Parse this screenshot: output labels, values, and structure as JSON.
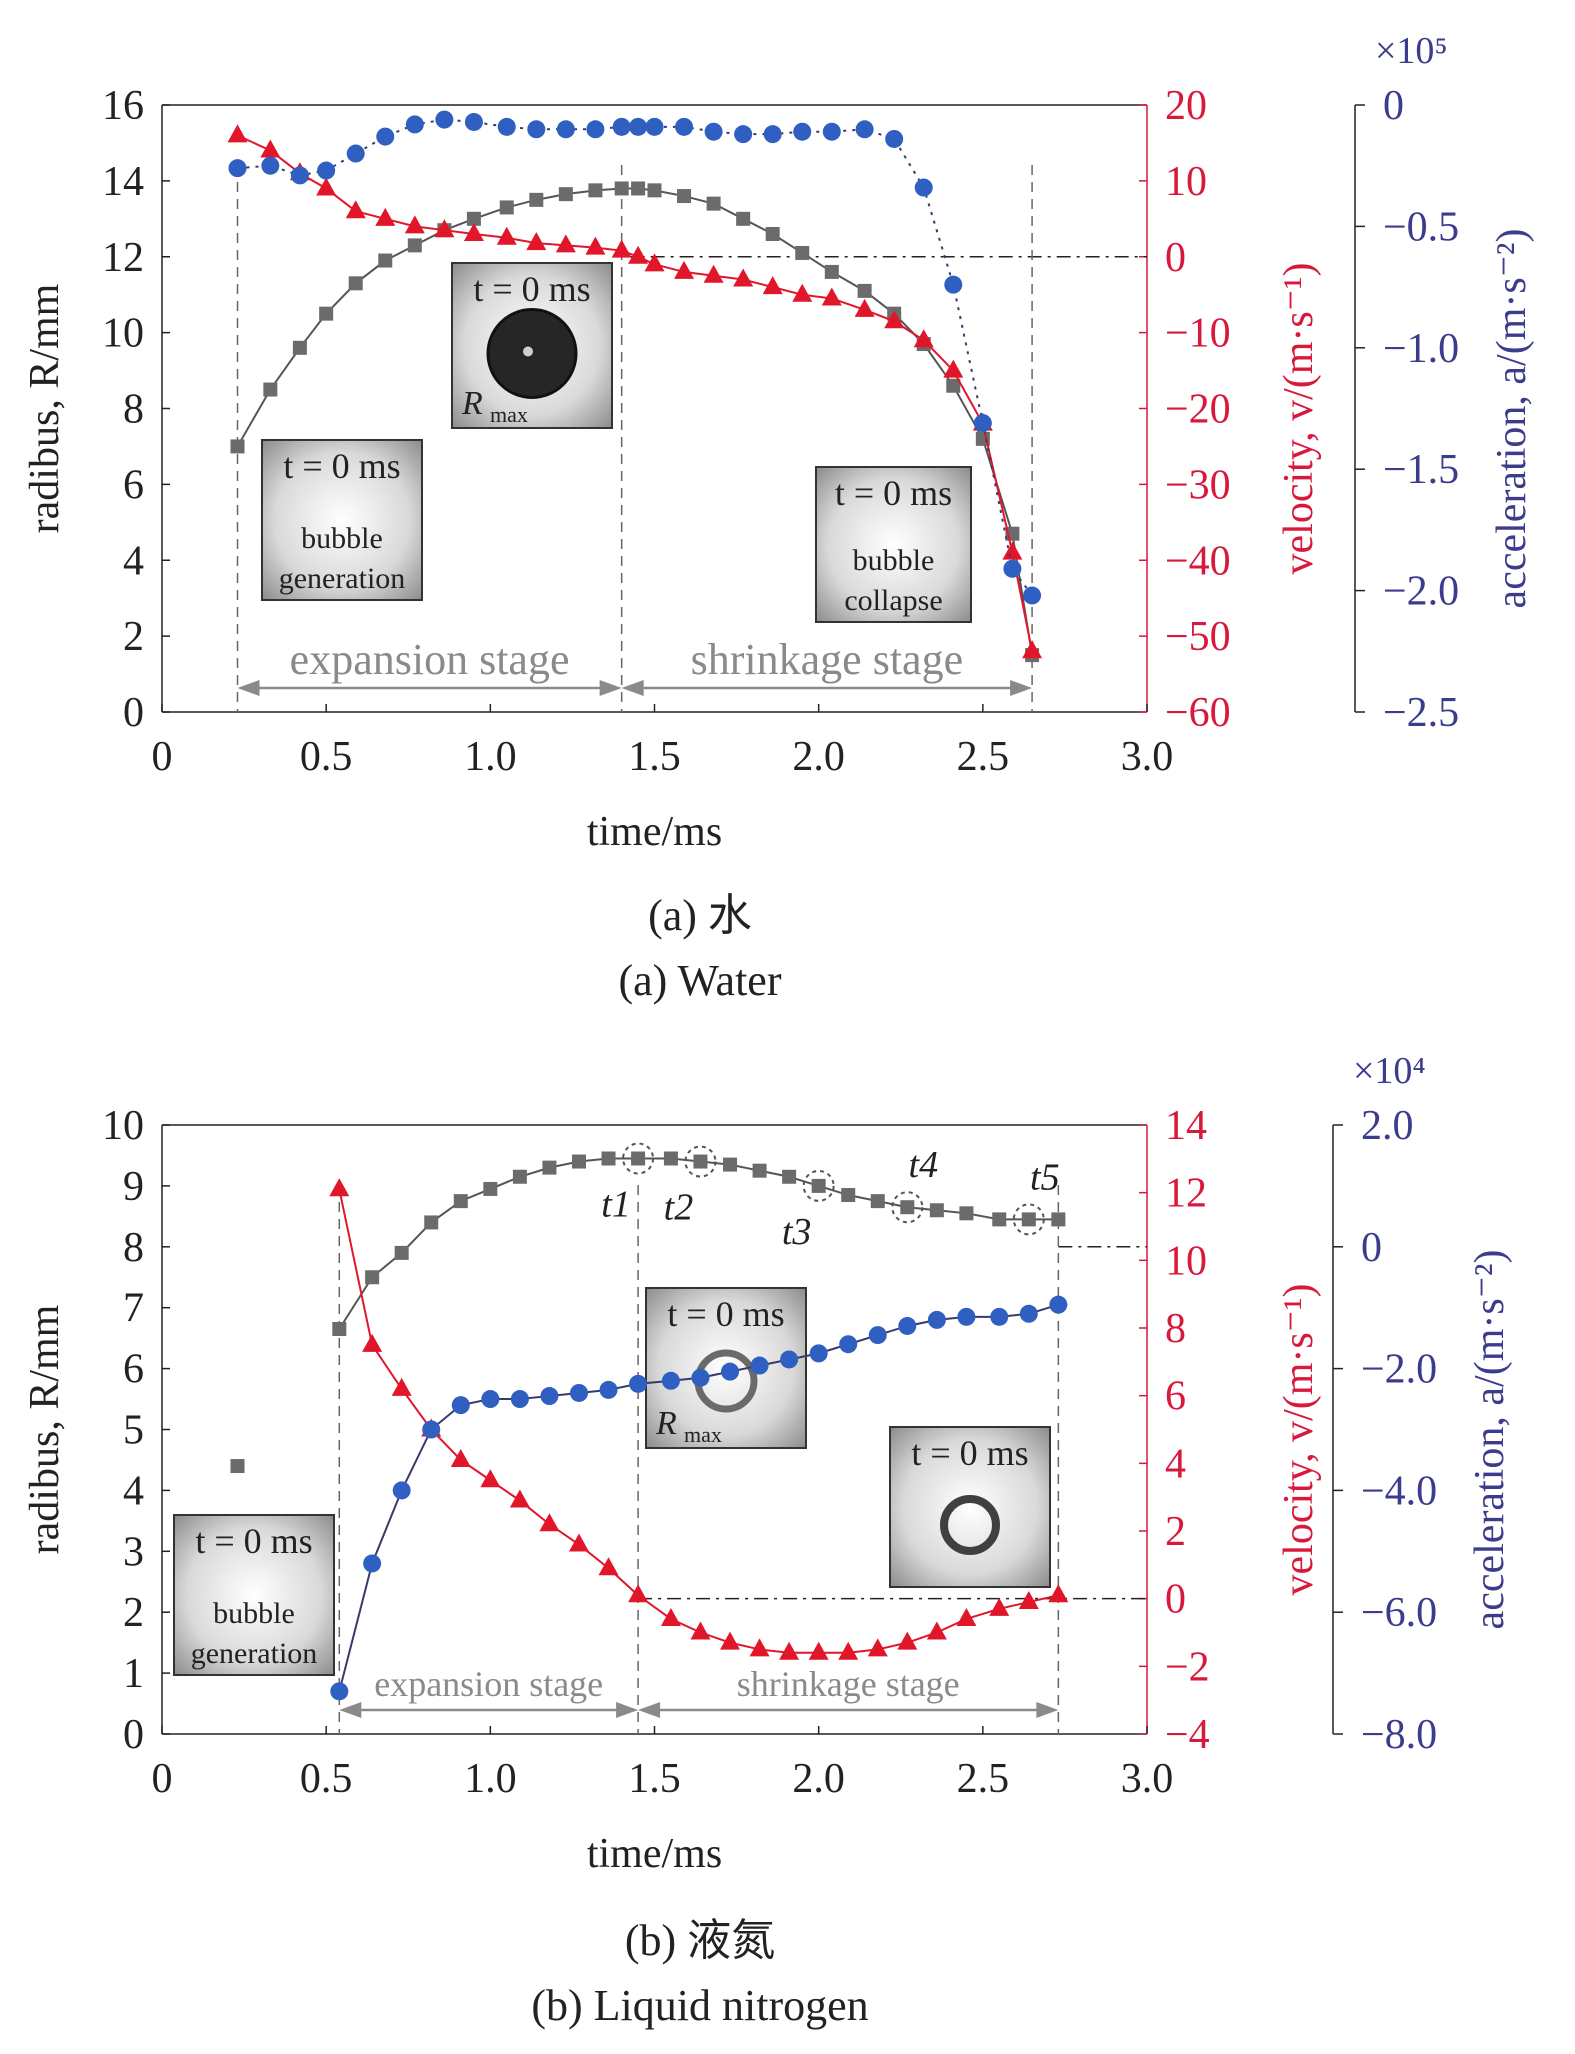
{
  "colors": {
    "radius": "#6b6b6b",
    "velocity": "#e2162a",
    "velocity_axis": "#d8193b",
    "acceleration": "#2f5fc1",
    "acceleration_axis": "#3c3c8c",
    "axis": "#222222",
    "annotation": "#8a8a8a"
  },
  "chart_data": [
    {
      "type": "line",
      "caption_cn": "(a) 水",
      "caption_en": "(a) Water",
      "xlabel": "time/ms",
      "ylabel_left": "radibus, R/mm",
      "ylabel_right1": "velocity, v/(m·s⁻¹)",
      "ylabel_right2": "acceleration, a/(m·s⁻²)",
      "multiplier_label": "×10⁵",
      "xlim": [
        0,
        3.0
      ],
      "xticks": [
        "0",
        "0.5",
        "1.0",
        "1.5",
        "2.0",
        "2.5",
        "3.0"
      ],
      "ylim_left": [
        0,
        16
      ],
      "yticks_left": [
        "0",
        "2",
        "4",
        "6",
        "8",
        "10",
        "12",
        "14",
        "16"
      ],
      "ylim_right1": [
        -60,
        20
      ],
      "yticks_right1": [
        "20",
        "10",
        "0",
        "−10",
        "−20",
        "−30",
        "−40",
        "−50",
        "−60"
      ],
      "ylim_right2": [
        -2.5,
        0
      ],
      "yticks_right2": [
        "0",
        "−0.5",
        "−1.0",
        "−1.5",
        "−2.0",
        "−2.5"
      ],
      "stage_labels": {
        "expansion": "expansion stage",
        "shrinkage": "shrinkage stage"
      },
      "stage_bounds_ms": [
        0.23,
        1.4,
        2.65
      ],
      "inset_labels": [
        {
          "time": "t = 0 ms",
          "caption": "bubble generation"
        },
        {
          "time": "t = 0 ms",
          "caption": "R",
          "subscript": "max"
        },
        {
          "time": "t = 0 ms",
          "caption": "bubble collapse"
        }
      ],
      "series": [
        {
          "axis": "left",
          "marker": "square",
          "x": [
            0.23,
            0.33,
            0.42,
            0.5,
            0.59,
            0.68,
            0.77,
            0.86,
            0.95,
            1.05,
            1.14,
            1.23,
            1.32,
            1.4,
            1.45,
            1.5,
            1.59,
            1.68,
            1.77,
            1.86,
            1.95,
            2.04,
            2.14,
            2.23,
            2.32,
            2.41,
            2.5,
            2.59,
            2.65
          ],
          "y": [
            7.0,
            8.5,
            9.6,
            10.5,
            11.3,
            11.9,
            12.3,
            12.7,
            13.0,
            13.3,
            13.5,
            13.65,
            13.75,
            13.8,
            13.8,
            13.75,
            13.6,
            13.4,
            13.0,
            12.6,
            12.1,
            11.6,
            11.1,
            10.5,
            9.7,
            8.6,
            7.2,
            4.7,
            1.5
          ]
        },
        {
          "axis": "right1",
          "marker": "triangle",
          "x": [
            0.23,
            0.33,
            0.42,
            0.5,
            0.59,
            0.68,
            0.77,
            0.86,
            0.95,
            1.05,
            1.14,
            1.23,
            1.32,
            1.4,
            1.45,
            1.5,
            1.59,
            1.68,
            1.77,
            1.86,
            1.95,
            2.04,
            2.14,
            2.23,
            2.32,
            2.41,
            2.5,
            2.59,
            2.65
          ],
          "y": [
            16,
            14,
            11,
            9,
            6,
            5,
            4,
            3.5,
            3,
            2.5,
            1.8,
            1.5,
            1.2,
            0.8,
            0,
            -1,
            -2,
            -2.5,
            -3,
            -4,
            -5,
            -5.5,
            -7,
            -8.5,
            -11,
            -15,
            -22,
            -39,
            -52
          ]
        },
        {
          "axis": "right2",
          "marker": "circle",
          "x": [
            0.23,
            0.33,
            0.42,
            0.5,
            0.59,
            0.68,
            0.77,
            0.86,
            0.95,
            1.05,
            1.14,
            1.23,
            1.32,
            1.4,
            1.45,
            1.5,
            1.59,
            1.68,
            1.77,
            1.86,
            1.95,
            2.04,
            2.14,
            2.23,
            2.32,
            2.41,
            2.5,
            2.59,
            2.65
          ],
          "y": [
            -0.26,
            -0.25,
            -0.29,
            -0.27,
            -0.2,
            -0.13,
            -0.08,
            -0.06,
            -0.07,
            -0.09,
            -0.1,
            -0.1,
            -0.1,
            -0.09,
            -0.09,
            -0.09,
            -0.09,
            -0.11,
            -0.12,
            -0.12,
            -0.11,
            -0.11,
            -0.1,
            -0.14,
            -0.34,
            -0.74,
            -1.31,
            -1.91,
            -2.02
          ]
        }
      ]
    },
    {
      "type": "line",
      "caption_cn": "(b) 液氮",
      "caption_en": "(b) Liquid nitrogen",
      "xlabel": "time/ms",
      "ylabel_left": "radibus, R/mm",
      "ylabel_right1": "velocity, v/(m·s⁻¹)",
      "ylabel_right2": "acceleration, a/(m·s⁻²)",
      "multiplier_label": "×10⁴",
      "xlim": [
        0,
        3.0
      ],
      "xticks": [
        "0",
        "0.5",
        "1.0",
        "1.5",
        "2.0",
        "2.5",
        "3.0"
      ],
      "ylim_left": [
        0,
        10
      ],
      "yticks_left": [
        "0",
        "1",
        "2",
        "3",
        "4",
        "5",
        "6",
        "7",
        "8",
        "9",
        "10"
      ],
      "ylim_right1": [
        -4,
        14
      ],
      "yticks_right1": [
        "14",
        "12",
        "10",
        "8",
        "6",
        "4",
        "2",
        "0",
        "−2",
        "−4"
      ],
      "ylim_right2": [
        -8.0,
        2.0
      ],
      "yticks_right2": [
        "2.0",
        "0",
        "−2.0",
        "−4.0",
        "−6.0",
        "−8.0"
      ],
      "stage_labels": {
        "expansion": "expansion stage",
        "shrinkage": "shrinkage stage"
      },
      "stage_bounds_ms": [
        0.54,
        1.45,
        2.73
      ],
      "time_markers": [
        "t1",
        "t2",
        "t3",
        "t4",
        "t5"
      ],
      "time_marker_x": [
        1.45,
        1.64,
        2.0,
        2.27,
        2.64
      ],
      "inset_labels": [
        {
          "time": "t = 0 ms",
          "caption": "bubble generation"
        },
        {
          "time": "t = 0 ms",
          "caption": "R",
          "subscript": "max"
        },
        {
          "time": "t = 0 ms",
          "caption": ""
        }
      ],
      "series": [
        {
          "axis": "left",
          "marker": "square",
          "x": [
            0.23,
            0.54,
            0.64,
            0.73,
            0.82,
            0.91,
            1.0,
            1.09,
            1.18,
            1.27,
            1.36,
            1.45,
            1.55,
            1.64,
            1.73,
            1.82,
            1.91,
            2.0,
            2.09,
            2.18,
            2.27,
            2.36,
            2.45,
            2.55,
            2.64,
            2.73
          ],
          "y": [
            4.4,
            6.65,
            7.5,
            7.9,
            8.4,
            8.75,
            8.95,
            9.15,
            9.3,
            9.4,
            9.45,
            9.45,
            9.45,
            9.4,
            9.35,
            9.25,
            9.15,
            9.0,
            8.85,
            8.75,
            8.65,
            8.6,
            8.55,
            8.45,
            8.45,
            8.45
          ]
        },
        {
          "axis": "right1",
          "marker": "triangle",
          "x": [
            0.54,
            0.64,
            0.73,
            0.82,
            0.91,
            1.0,
            1.09,
            1.18,
            1.27,
            1.36,
            1.45,
            1.55,
            1.64,
            1.73,
            1.82,
            1.91,
            2.0,
            2.09,
            2.18,
            2.27,
            2.36,
            2.45,
            2.55,
            2.64,
            2.73
          ],
          "y": [
            12.1,
            7.5,
            6.2,
            5.0,
            4.1,
            3.5,
            2.9,
            2.2,
            1.6,
            0.9,
            0.1,
            -0.6,
            -1.0,
            -1.3,
            -1.5,
            -1.6,
            -1.6,
            -1.6,
            -1.5,
            -1.3,
            -1.0,
            -0.6,
            -0.3,
            -0.1,
            0.1
          ]
        },
        {
          "axis": "right2",
          "marker": "circle",
          "x": [
            0.54,
            0.64,
            0.73,
            0.82,
            0.91,
            1.0,
            1.09,
            1.18,
            1.27,
            1.36,
            1.45,
            1.55,
            1.64,
            1.73,
            1.82,
            1.91,
            2.0,
            2.09,
            2.18,
            2.27,
            2.36,
            2.45,
            2.55,
            2.64,
            2.73
          ],
          "y": [
            -7.3,
            -5.2,
            -4.0,
            -3.0,
            -2.6,
            -2.5,
            -2.5,
            -2.45,
            -2.4,
            -2.35,
            -2.25,
            -2.2,
            -2.15,
            -2.05,
            -1.95,
            -1.85,
            -1.75,
            -1.6,
            -1.45,
            -1.3,
            -1.2,
            -1.15,
            -1.15,
            -1.1,
            -0.95
          ]
        }
      ]
    }
  ]
}
